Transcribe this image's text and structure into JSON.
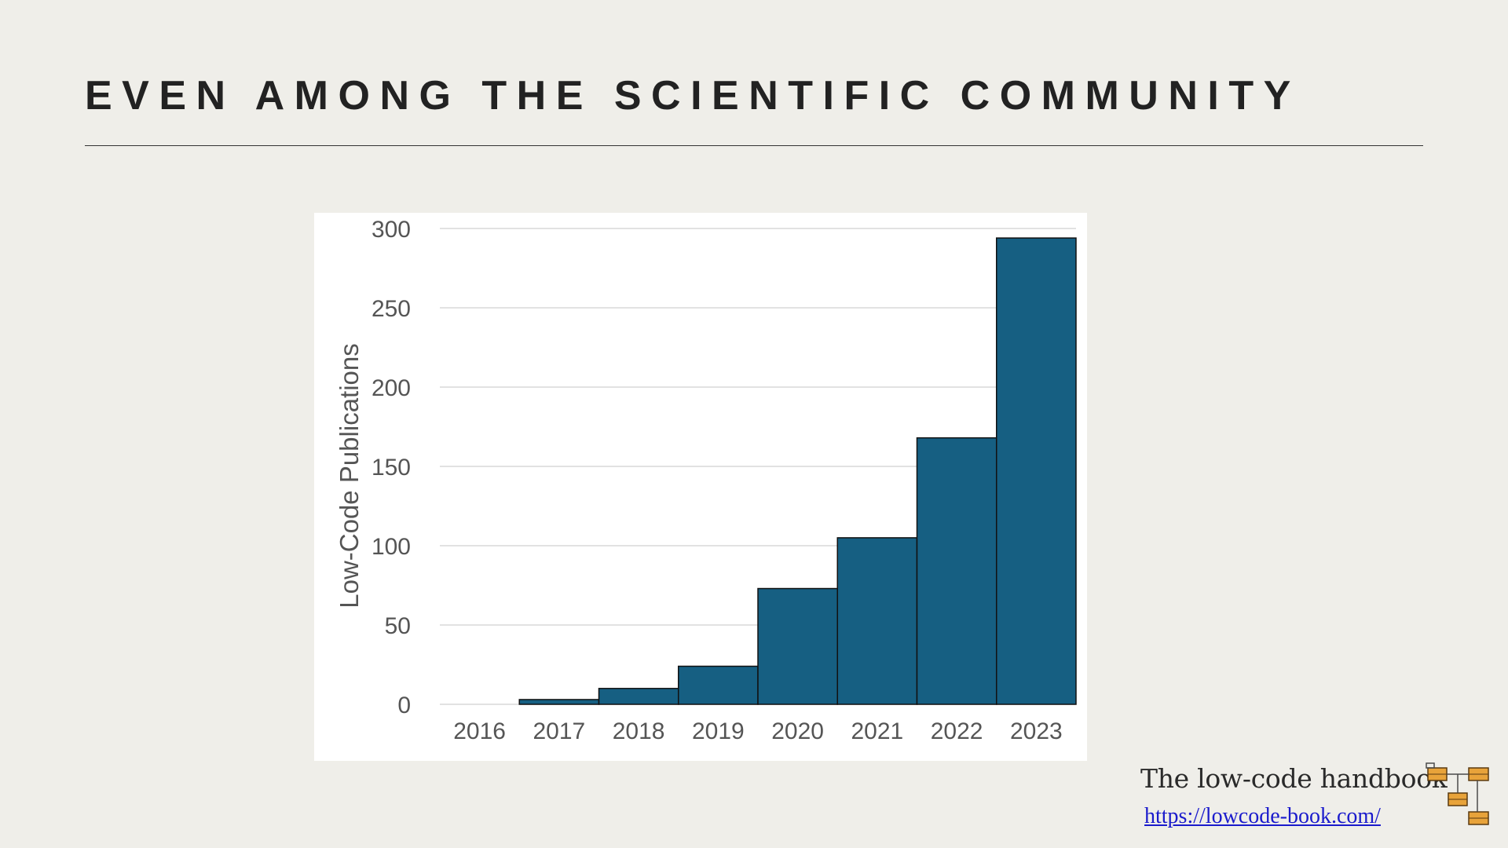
{
  "slide": {
    "title": "EVEN AMONG THE SCIENTIFIC COMMUNITY"
  },
  "chart_data": {
    "type": "bar",
    "categories": [
      "2016",
      "2017",
      "2018",
      "2019",
      "2020",
      "2021",
      "2022",
      "2023"
    ],
    "values": [
      0,
      3,
      10,
      24,
      73,
      105,
      168,
      294
    ],
    "title": "",
    "xlabel": "",
    "ylabel": "Low-Code Publications",
    "ylim": [
      0,
      300
    ],
    "yticks": [
      0,
      50,
      100,
      150,
      200,
      250,
      300
    ],
    "grid": true,
    "bar_color": "#165f82",
    "bar_edge_color": "#111111"
  },
  "branding": {
    "name": "The low-code handbook",
    "url": "https://lowcode-book.com/",
    "logo_icon": "flowchart-boxes-icon",
    "logo_color": "#e8a33a"
  }
}
